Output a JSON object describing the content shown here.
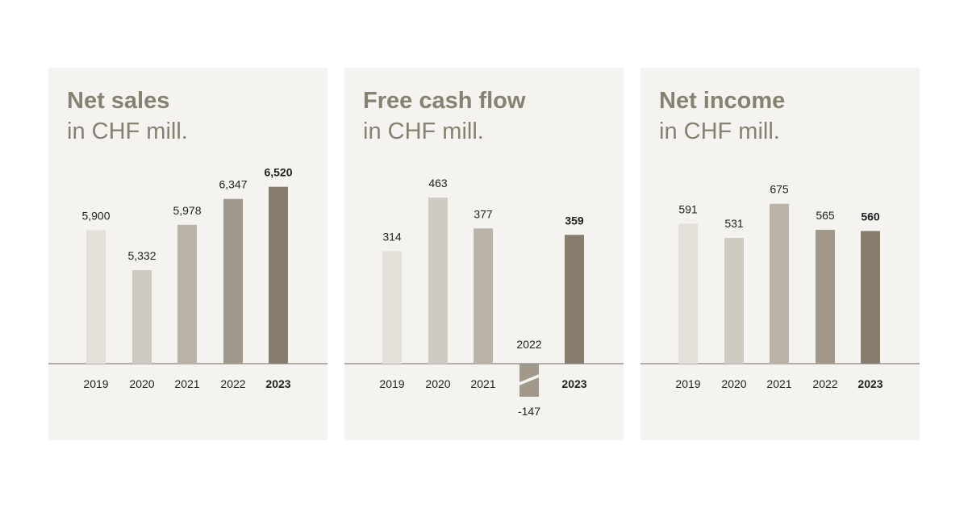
{
  "panels": [
    {
      "title": "Net sales",
      "subtitle": "in CHF mill."
    },
    {
      "title": "Free cash flow",
      "subtitle": "in CHF mill."
    },
    {
      "title": "Net income",
      "subtitle": "in CHF mill."
    }
  ],
  "bar_colors": [
    "#e2e0d9",
    "#cfcbc2",
    "#b9b3a8",
    "#a0998b",
    "#867d6d"
  ],
  "title_color": "#888070",
  "chart_data": [
    {
      "type": "bar",
      "title": "Net sales",
      "subtitle": "in CHF mill.",
      "categories": [
        "2019",
        "2020",
        "2021",
        "2022",
        "2023"
      ],
      "values": [
        5900,
        5332,
        5978,
        6347,
        6520
      ],
      "labels": [
        "5,900",
        "5,332",
        "5,978",
        "6,347",
        "6,520"
      ],
      "highlight": "2023",
      "axis_break": true,
      "ylim": [
        4000,
        6700
      ]
    },
    {
      "type": "bar",
      "title": "Free cash flow",
      "subtitle": "in CHF mill.",
      "categories": [
        "2019",
        "2020",
        "2021",
        "2022",
        "2023"
      ],
      "values": [
        314,
        463,
        377,
        -147,
        359
      ],
      "labels": [
        "314",
        "463",
        "377",
        "-147",
        "359"
      ],
      "highlight": "2023",
      "negative_bar_broken": true,
      "ylim": [
        -147,
        475
      ]
    },
    {
      "type": "bar",
      "title": "Net income",
      "subtitle": "in CHF mill.",
      "categories": [
        "2019",
        "2020",
        "2021",
        "2022",
        "2023"
      ],
      "values": [
        591,
        531,
        675,
        565,
        560
      ],
      "labels": [
        "591",
        "531",
        "675",
        "565",
        "560"
      ],
      "highlight": "2023",
      "ylim": [
        0,
        800
      ]
    }
  ]
}
